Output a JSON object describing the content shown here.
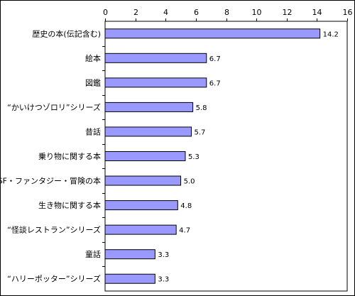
{
  "chart_data": {
    "type": "bar",
    "orientation": "horizontal",
    "title": "",
    "xlabel": "",
    "ylabel": "",
    "xlim": [
      0,
      16
    ],
    "x_ticks": [
      0,
      2,
      4,
      6,
      8,
      10,
      12,
      14,
      16
    ],
    "x_axis_position": "top",
    "grid": false,
    "legend": "none",
    "bar_color": "#9999FF",
    "categories": [
      "歴史の本(伝記含む)",
      "絵本",
      "図鑑",
      "“かいけつゾロリ”シリーズ",
      "昔話",
      "乗り物に関する本",
      "SF・ファンタジー・冒険の本",
      "生き物に関する本",
      "“怪談レストラン”シリーズ",
      "童話",
      "“ハリーポッター”シリーズ"
    ],
    "values": [
      14.2,
      6.7,
      6.7,
      5.8,
      5.7,
      5.3,
      5.0,
      4.8,
      4.7,
      3.3,
      3.3
    ],
    "data_labels": [
      "14.2",
      "6.7",
      "6.7",
      "5.8",
      "5.7",
      "5.3",
      "5.0",
      "4.8",
      "4.7",
      "3.3",
      "3.3"
    ]
  }
}
